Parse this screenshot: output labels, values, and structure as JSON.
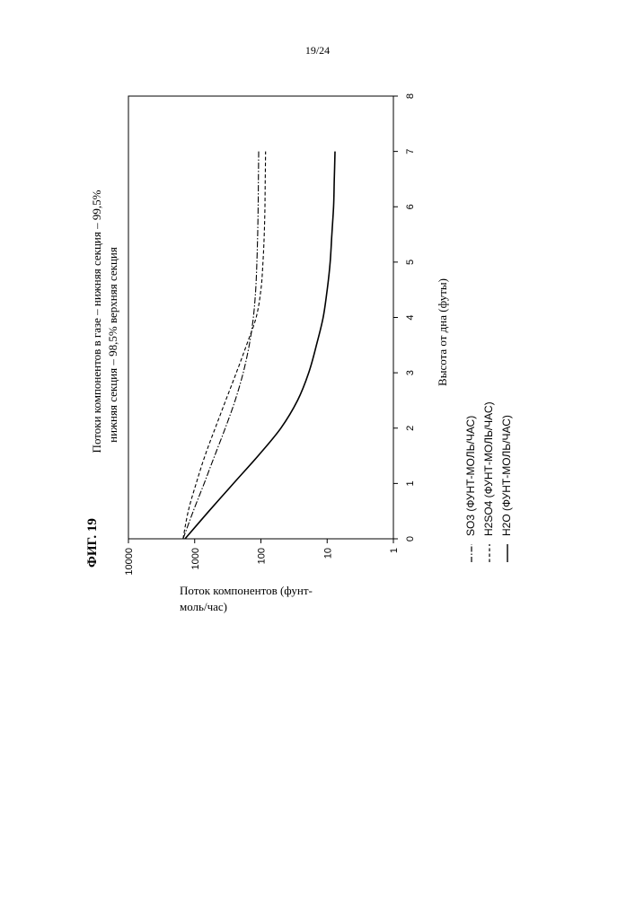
{
  "page": {
    "number": "19/24"
  },
  "figure": {
    "label": "ФИГ. 19"
  },
  "chart_data": {
    "type": "line",
    "orientation": "rotated-90-clockwise",
    "title_lines": [
      "Потоки компонентов в газе – нижняя секция – 99,5%",
      "нижняя секция – 98,5% верхняя секция"
    ],
    "xlabel": "Высота от дна (футы)",
    "ylabel_lines": [
      "Поток компонентов (фунт-",
      "моль/час)"
    ],
    "xlim": [
      0,
      8
    ],
    "ylim": [
      1,
      10000
    ],
    "yscale": "log",
    "xticks": [
      0,
      1,
      2,
      3,
      4,
      5,
      6,
      7,
      8
    ],
    "yticks": [
      1,
      10,
      100,
      1000,
      10000
    ],
    "ytick_labels": [
      "1",
      "10",
      "100",
      "1000",
      "10000"
    ],
    "grid": false,
    "legend_position": "bottom",
    "series": [
      {
        "name": "SO3 (ФУНТ-МОЛЬ/ЧАС)",
        "style": "dash-dot",
        "x": [
          0,
          0.5,
          1,
          1.5,
          2,
          2.5,
          3,
          3.5,
          4,
          4.5,
          5,
          5.5,
          6,
          6.5,
          7
        ],
        "y": [
          1500,
          1050,
          720,
          500,
          345,
          245,
          185,
          150,
          130,
          120,
          115,
          112,
          110,
          109,
          108
        ]
      },
      {
        "name": "H2SO4 (ФУНТ-МОЛЬ/ЧАС)",
        "style": "dashed",
        "x": [
          0,
          0.5,
          1,
          1.5,
          2,
          2.5,
          3,
          3.5,
          4,
          4.5,
          5,
          5.5,
          6,
          6.5,
          7
        ],
        "y": [
          1500,
          1250,
          950,
          700,
          490,
          340,
          235,
          165,
          118,
          100,
          93,
          89,
          87,
          86,
          85
        ]
      },
      {
        "name": "H2O (ФУНТ-МОЛЬ/ЧАС)",
        "style": "solid",
        "x": [
          0,
          0.5,
          1,
          1.5,
          2,
          2.5,
          3,
          3.5,
          4,
          4.5,
          5,
          5.5,
          6,
          6.5,
          7
        ],
        "y": [
          1400,
          610,
          260,
          110,
          50,
          28,
          19,
          14.5,
          11.5,
          10,
          9,
          8.5,
          8,
          7.8,
          7.6
        ]
      }
    ]
  }
}
